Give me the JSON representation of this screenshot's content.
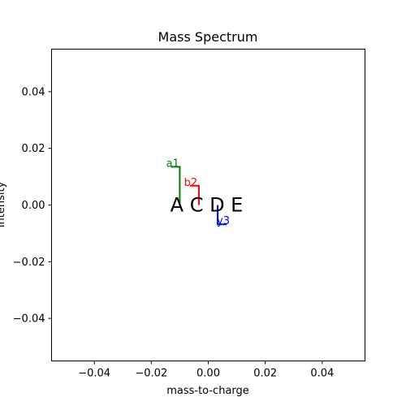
{
  "chart_data": {
    "type": "line",
    "title": "Mass Spectrum",
    "xlabel": "mass-to-charge",
    "ylabel": "Intensity",
    "xlim": [
      -0.055,
      0.055
    ],
    "ylim": [
      -0.055,
      0.055
    ],
    "xticks": [
      -0.04,
      -0.02,
      0.0,
      0.02,
      0.04
    ],
    "yticks": [
      -0.04,
      -0.02,
      0.0,
      0.02,
      0.04
    ],
    "xtick_labels": [
      "−0.04",
      "−0.02",
      "0.00",
      "0.02",
      "0.04"
    ],
    "ytick_labels": [
      "−0.04",
      "−0.02",
      "0.00",
      "0.02",
      "0.04"
    ],
    "grid": false,
    "sequence": "A C D E",
    "sequence_position": [
      0.0,
      0.0
    ],
    "fragment_ions": [
      {
        "label": "a1",
        "color": "#008000",
        "base_x": -0.01,
        "tip_y": 0.0135,
        "label_x": -0.0148,
        "label_y": 0.0147,
        "side": "left"
      },
      {
        "label": "b2",
        "color": "#ff0000",
        "base_x": -0.0033,
        "tip_y": 0.0068,
        "label_x": -0.0085,
        "label_y": 0.008,
        "side": "left"
      },
      {
        "label": "y3",
        "color": "#0000ff",
        "base_x": 0.0033,
        "tip_y": -0.0068,
        "label_x": 0.003,
        "label_y": -0.0055,
        "side": "right"
      }
    ]
  }
}
